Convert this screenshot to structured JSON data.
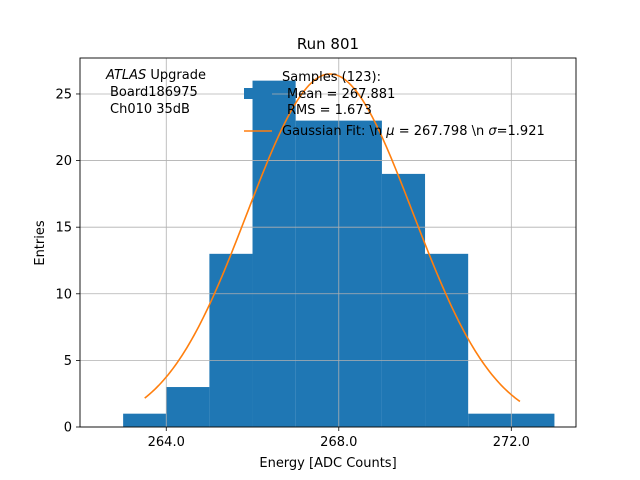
{
  "chart_data": {
    "type": "bar",
    "title": "Run 801",
    "xlabel": "Energy [ADC Counts]",
    "ylabel": "Entries",
    "xlim": [
      262.0,
      273.5
    ],
    "ylim": [
      0,
      27.7
    ],
    "x_tick_labels": [
      "264.0",
      "268.0",
      "272.0"
    ],
    "x_ticks": [
      264,
      268,
      272
    ],
    "y_ticks": [
      0,
      5,
      10,
      15,
      20,
      25
    ],
    "grid": true,
    "bins": [
      {
        "x0": 263,
        "x1": 264,
        "value": 1
      },
      {
        "x0": 264,
        "x1": 265,
        "value": 3
      },
      {
        "x0": 265,
        "x1": 266,
        "value": 13
      },
      {
        "x0": 266,
        "x1": 267,
        "value": 26
      },
      {
        "x0": 267,
        "x1": 268,
        "value": 23
      },
      {
        "x0": 268,
        "x1": 269,
        "value": 23
      },
      {
        "x0": 269,
        "x1": 270,
        "value": 19
      },
      {
        "x0": 270,
        "x1": 271,
        "value": 13
      },
      {
        "x0": 271,
        "x1": 272,
        "value": 1
      },
      {
        "x0": 272,
        "x1": 273,
        "value": 1
      }
    ],
    "fit": {
      "mu": 267.798,
      "sigma": 1.921,
      "amplitude": 26.5,
      "x_range": [
        263.5,
        272.2
      ]
    },
    "legend": {
      "placement": "top-right",
      "histogram_lines": [
        "Samples (123):",
        "Mean = 267.881",
        "RMS = 1.673"
      ],
      "fit_label": "Gaussian Fit: \\n $\\mu$ = 267.798 \\n $\\sigma$=1.921",
      "fit_label_parts": [
        "Gaussian Fit: \\n ",
        "μ",
        " = 267.798 \\n ",
        "σ",
        "=1.921"
      ]
    },
    "annotation": {
      "italic": "ATLAS",
      "rest": " Upgrade",
      "line2": "Board186975",
      "line3": "Ch010 35dB"
    },
    "colors": {
      "bars": "#1f77b4",
      "fit": "#ff7f0e",
      "grid": "#b0b0b0"
    }
  }
}
